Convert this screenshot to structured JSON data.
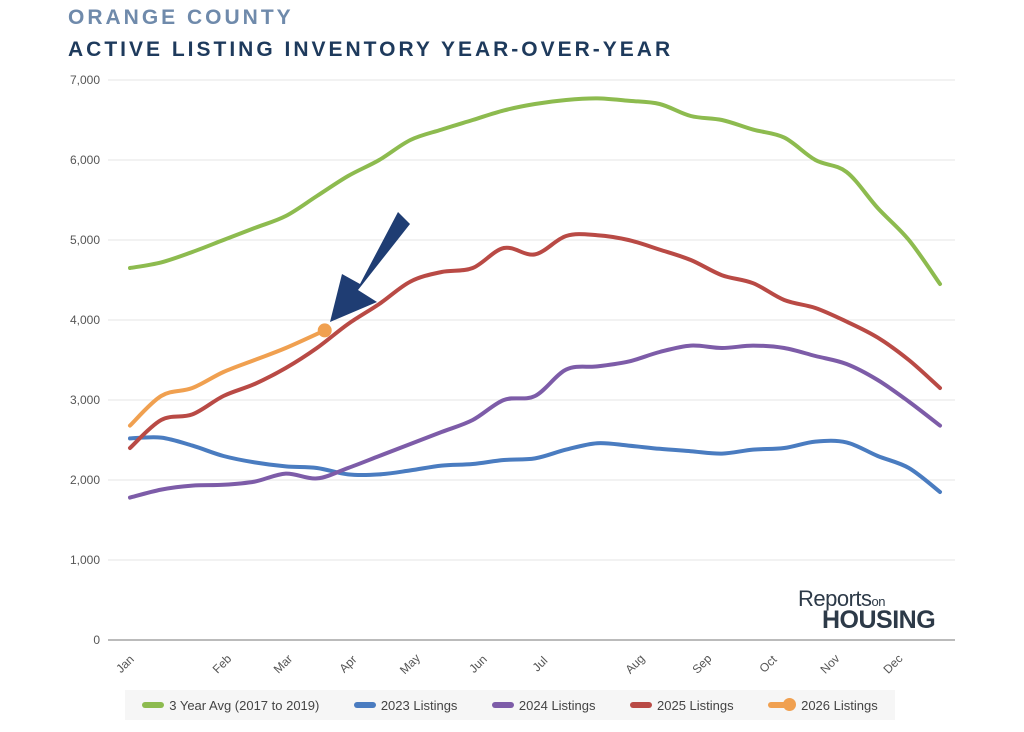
{
  "title_line1": "ORANGE COUNTY",
  "title_line2": "ACTIVE LISTING INVENTORY YEAR-OVER-YEAR",
  "logo_text": {
    "line1": "Reports",
    "on": "on",
    "line2": "HOUSING"
  },
  "chart_data": {
    "type": "line",
    "title": "ACTIVE LISTING INVENTORY YEAR-OVER-YEAR",
    "xlabel": "",
    "ylabel": "",
    "ylim": [
      0,
      7000
    ],
    "yticks": [
      "0",
      "1,000",
      "2,000",
      "3,000",
      "4,000",
      "5,000",
      "6,000",
      "7,000"
    ],
    "ytick_values": [
      0,
      1000,
      2000,
      3000,
      4000,
      5000,
      6000,
      7000
    ],
    "xtick_labels": [
      "Jan",
      "Feb",
      "Mar",
      "Apr",
      "May",
      "Jun",
      "Jul",
      "Aug",
      "Sep",
      "Oct",
      "Nov",
      "Dec"
    ],
    "x_unit": "week of year",
    "xlim": [
      0,
      52
    ],
    "grid": "horizontal",
    "legend_position": "bottom",
    "series": [
      {
        "name": "3 Year Avg (2017 to 2019)",
        "color": "#8dbb4f",
        "x": [
          0,
          2,
          4,
          6,
          8,
          10,
          12,
          14,
          16,
          18,
          20,
          22,
          24,
          26,
          28,
          30,
          32,
          34,
          36,
          38,
          40,
          42,
          44,
          46,
          48,
          50,
          52
        ],
        "values": [
          4650,
          4720,
          4850,
          5000,
          5150,
          5300,
          5550,
          5800,
          6000,
          6250,
          6380,
          6500,
          6620,
          6700,
          6750,
          6770,
          6740,
          6700,
          6550,
          6500,
          6380,
          6280,
          6000,
          5850,
          5400,
          5000,
          4450
        ]
      },
      {
        "name": "2023 Listings",
        "color": "#4a7cc0",
        "x": [
          0,
          2,
          4,
          6,
          8,
          10,
          12,
          14,
          16,
          18,
          20,
          22,
          24,
          26,
          28,
          30,
          32,
          34,
          36,
          38,
          40,
          42,
          44,
          46,
          48,
          50,
          52
        ],
        "values": [
          2520,
          2530,
          2430,
          2300,
          2220,
          2170,
          2150,
          2070,
          2070,
          2120,
          2180,
          2200,
          2250,
          2270,
          2380,
          2460,
          2430,
          2390,
          2360,
          2330,
          2380,
          2400,
          2480,
          2470,
          2300,
          2150,
          1850
        ]
      },
      {
        "name": "2024 Listings",
        "color": "#7d5ca8",
        "x": [
          0,
          2,
          4,
          6,
          8,
          10,
          12,
          14,
          16,
          18,
          20,
          22,
          24,
          26,
          28,
          30,
          32,
          34,
          36,
          38,
          40,
          42,
          44,
          46,
          48,
          50,
          52
        ],
        "values": [
          1780,
          1880,
          1930,
          1940,
          1980,
          2080,
          2020,
          2150,
          2300,
          2450,
          2600,
          2750,
          3000,
          3050,
          3380,
          3420,
          3480,
          3600,
          3680,
          3650,
          3680,
          3650,
          3550,
          3450,
          3250,
          2980,
          2680
        ]
      },
      {
        "name": "2025 Listings",
        "color": "#b94a45",
        "x": [
          0,
          2,
          4,
          6,
          8,
          10,
          12,
          14,
          16,
          18,
          20,
          22,
          24,
          26,
          28,
          30,
          32,
          34,
          36,
          38,
          40,
          42,
          44,
          46,
          48,
          50,
          52
        ],
        "values": [
          2400,
          2750,
          2820,
          3050,
          3200,
          3400,
          3650,
          3950,
          4200,
          4480,
          4600,
          4650,
          4900,
          4820,
          5050,
          5060,
          5000,
          4880,
          4750,
          4560,
          4460,
          4250,
          4150,
          3980,
          3780,
          3500,
          3150
        ]
      },
      {
        "name": "2026 Listings",
        "color": "#f0a050",
        "marker_last": true,
        "x": [
          0,
          2,
          4,
          6,
          8,
          10,
          12.5
        ],
        "values": [
          2680,
          3050,
          3150,
          3350,
          3500,
          3650,
          3870
        ]
      }
    ],
    "annotation": {
      "type": "arrow",
      "points_to": "2026 Listings latest value",
      "color": "#1f3d73"
    }
  }
}
